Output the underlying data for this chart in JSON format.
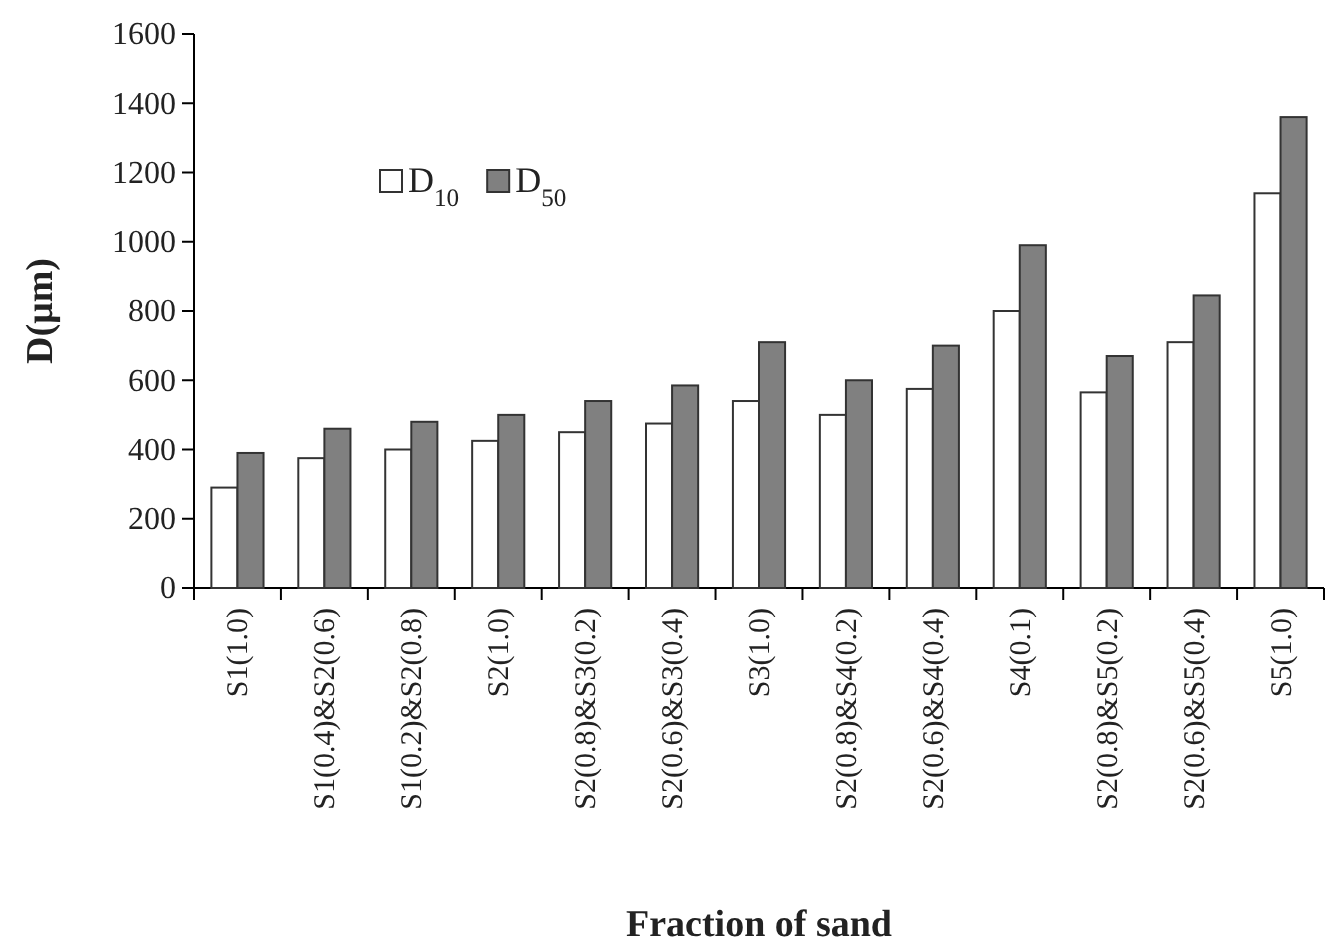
{
  "chart_data": {
    "type": "bar",
    "xlabel": "Fraction of sand",
    "ylabel": "D(μm)",
    "categories": [
      "S1(1.0)",
      "S1(0.4)&S2(0.6)",
      "S1(0.2)&S2(0.8)",
      "S2(1.0)",
      "S2(0.8)&S3(0.2)",
      "S2(0.6)&S3(0.4)",
      "S3(1.0)",
      "S2(0.8)&S4(0.2)",
      "S2(0.6)&S4(0.4)",
      "S4(0.1)",
      "S2(0.8)&S5(0.2)",
      "S2(0.6)&S5(0.4)",
      "S5(1.0)"
    ],
    "series": [
      {
        "name": "D$_{10}$",
        "color": "#ffffff",
        "values": [
          290,
          375,
          400,
          425,
          450,
          475,
          540,
          500,
          575,
          800,
          565,
          710,
          1140
        ]
      },
      {
        "name": "D$_{50}$",
        "color": "#808080",
        "values": [
          390,
          460,
          480,
          500,
          540,
          585,
          710,
          600,
          700,
          990,
          670,
          845,
          1360
        ]
      }
    ],
    "ylim": [
      0,
      1600
    ],
    "yticks": [
      0,
      200,
      400,
      600,
      800,
      1000,
      1200,
      1400,
      1600
    ],
    "grid": false,
    "legend": "top left"
  }
}
